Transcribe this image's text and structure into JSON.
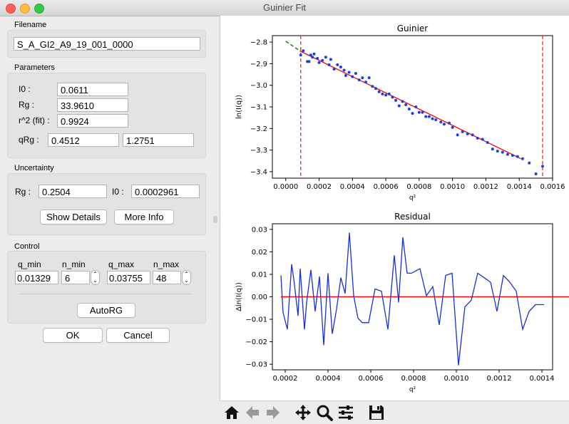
{
  "window": {
    "title": "Guinier Fit"
  },
  "filename": {
    "section": "Filename",
    "value": "S_A_GI2_A9_19_001_0000"
  },
  "parameters": {
    "section": "Parameters",
    "i0_label": "I0 :",
    "i0": "0.0611",
    "rg_label": "Rg :",
    "rg": "33.9610",
    "r2_label": "r^2 (fit) :",
    "r2": "0.9924",
    "qrg_label": "qRg :",
    "qrg_min": "0.4512",
    "qrg_max": "1.2751"
  },
  "uncertainty": {
    "section": "Uncertainty",
    "rg_label": "Rg :",
    "rg": "0.2504",
    "i0_label": "I0 :",
    "i0": "0.0002961",
    "show_details": "Show Details",
    "more_info": "More Info"
  },
  "control": {
    "section": "Control",
    "q_min_label": "q_min",
    "q_min": "0.01329",
    "n_min_label": "n_min",
    "n_min": "6",
    "q_max_label": "q_max",
    "q_max": "0.03755",
    "n_max_label": "n_max",
    "n_max": "48",
    "autorg": "AutoRG"
  },
  "dialog": {
    "ok": "OK",
    "cancel": "Cancel"
  },
  "toolbar_icons": [
    "home-icon",
    "back-arrow-icon",
    "forward-arrow-icon",
    "pan-icon",
    "zoom-icon",
    "configure-subplots-icon",
    "save-icon"
  ],
  "colors": {
    "points": "#1f3fdb",
    "fit": "#ff0000",
    "extrapolation": "#1a7a1a",
    "residual": "#1a2fd6",
    "limits": "#e03030"
  },
  "chart_data": [
    {
      "type": "scatter",
      "title": "Guinier",
      "xlabel": "q²",
      "ylabel": "ln(I(q))",
      "xlim": [
        -8e-05,
        0.0016
      ],
      "ylim": [
        -3.43,
        -2.77
      ],
      "xticks": [
        0.0,
        0.0002,
        0.0004,
        0.0006,
        0.0008,
        0.001,
        0.0012,
        0.0014,
        0.0016
      ],
      "xtick_labels": [
        "0.0000",
        "0.0002",
        "0.0004",
        "0.0006",
        "0.0008",
        "0.0010",
        "0.0012",
        "0.0014",
        "0.0016"
      ],
      "yticks": [
        -2.8,
        -2.9,
        -3.0,
        -3.1,
        -3.2,
        -3.3,
        -3.4
      ],
      "ytick_labels": [
        "−2.8",
        "−2.9",
        "−3.0",
        "−3.1",
        "−3.2",
        "−3.3",
        "−3.4"
      ],
      "grid": false,
      "points": [
        [
          9e-05,
          -2.86
        ],
        [
          0.000105,
          -2.84
        ],
        [
          0.00013,
          -2.89
        ],
        [
          0.00014,
          -2.89
        ],
        [
          0.00015,
          -2.86
        ],
        [
          0.00016,
          -2.87
        ],
        [
          0.00017,
          -2.855
        ],
        [
          0.00019,
          -2.875
        ],
        [
          0.0002,
          -2.895
        ],
        [
          0.00022,
          -2.885
        ],
        [
          0.00024,
          -2.87
        ],
        [
          0.00026,
          -2.905
        ],
        [
          0.00027,
          -2.88
        ],
        [
          0.00029,
          -2.925
        ],
        [
          0.00031,
          -2.905
        ],
        [
          0.00033,
          -2.915
        ],
        [
          0.00035,
          -2.93
        ],
        [
          0.00036,
          -2.955
        ],
        [
          0.00038,
          -2.94
        ],
        [
          0.0004,
          -2.96
        ],
        [
          0.00042,
          -2.945
        ],
        [
          0.00044,
          -2.975
        ],
        [
          0.00046,
          -2.965
        ],
        [
          0.00048,
          -2.985
        ],
        [
          0.0005,
          -2.965
        ],
        [
          0.00052,
          -3.005
        ],
        [
          0.00054,
          -3.015
        ],
        [
          0.00056,
          -3.03
        ],
        [
          0.00058,
          -3.04
        ],
        [
          0.0006,
          -3.045
        ],
        [
          0.00062,
          -3.04
        ],
        [
          0.00064,
          -3.055
        ],
        [
          0.00066,
          -3.07
        ],
        [
          0.00068,
          -3.095
        ],
        [
          0.0007,
          -3.075
        ],
        [
          0.00072,
          -3.09
        ],
        [
          0.00074,
          -3.11
        ],
        [
          0.00076,
          -3.13
        ],
        [
          0.00078,
          -3.1
        ],
        [
          0.0008,
          -3.125
        ],
        [
          0.00082,
          -3.125
        ],
        [
          0.00084,
          -3.145
        ],
        [
          0.00086,
          -3.145
        ],
        [
          0.00088,
          -3.155
        ],
        [
          0.0009,
          -3.16
        ],
        [
          0.00093,
          -3.17
        ],
        [
          0.00095,
          -3.18
        ],
        [
          0.00098,
          -3.175
        ],
        [
          0.001,
          -3.195
        ],
        [
          0.00103,
          -3.23
        ],
        [
          0.00106,
          -3.215
        ],
        [
          0.00109,
          -3.225
        ],
        [
          0.00112,
          -3.23
        ],
        [
          0.00115,
          -3.245
        ],
        [
          0.00118,
          -3.25
        ],
        [
          0.00121,
          -3.265
        ],
        [
          0.00124,
          -3.295
        ],
        [
          0.00127,
          -3.305
        ],
        [
          0.0013,
          -3.31
        ],
        [
          0.00133,
          -3.32
        ],
        [
          0.00136,
          -3.325
        ],
        [
          0.00139,
          -3.33
        ],
        [
          0.00142,
          -3.34
        ],
        [
          0.00146,
          -3.36
        ],
        [
          0.0015,
          -3.41
        ],
        [
          0.00154,
          -3.375
        ]
      ],
      "fit_line": [
        [
          9e-05,
          -2.843
        ],
        [
          0.00141,
          -3.34
        ]
      ],
      "extrapolation_line": [
        [
          0.0,
          -2.796
        ],
        [
          9e-05,
          -2.843
        ]
      ],
      "limits": [
        9e-05,
        0.00154
      ]
    },
    {
      "type": "line",
      "title": "Residual",
      "xlabel": "q²",
      "ylabel": "Δln(I(q))",
      "xlim": [
        0.00014,
        0.00145
      ],
      "ylim": [
        -0.0325,
        0.0325
      ],
      "xticks": [
        0.0002,
        0.0004,
        0.0006,
        0.0008,
        0.001,
        0.0012,
        0.0014
      ],
      "xtick_labels": [
        "0.0002",
        "0.0004",
        "0.0006",
        "0.0008",
        "0.0010",
        "0.0012",
        "0.0014"
      ],
      "yticks": [
        0.03,
        0.02,
        0.01,
        0.0,
        -0.01,
        -0.02,
        -0.03
      ],
      "ytick_labels": [
        "0.03",
        "0.02",
        "0.01",
        "0.00",
        "−0.01",
        "−0.02",
        "−0.03"
      ],
      "grid": false,
      "x": [
        0.00018,
        0.00019,
        0.00021,
        0.00023,
        0.00024,
        0.00026,
        0.00027,
        0.00029,
        0.0003,
        0.00032,
        0.00034,
        0.00036,
        0.00038,
        0.0004,
        0.00042,
        0.00044,
        0.00046,
        0.00048,
        0.0005,
        0.00052,
        0.00054,
        0.00056,
        0.00059,
        0.00062,
        0.00065,
        0.00068,
        0.00071,
        0.00073,
        0.00075,
        0.00077,
        0.00079,
        0.00081,
        0.00083,
        0.00086,
        0.00089,
        0.00092,
        0.00095,
        0.00098,
        0.00101,
        0.00104,
        0.00107,
        0.0011,
        0.00113,
        0.00116,
        0.00119,
        0.00122,
        0.00125,
        0.00128,
        0.00131,
        0.00134,
        0.00137,
        0.00141
      ],
      "y": [
        0.0095,
        -0.007,
        -0.0145,
        0.0145,
        0.008,
        -0.0085,
        0.0125,
        -0.0145,
        -0.0025,
        0.012,
        -0.0065,
        0.009,
        -0.0215,
        0.0105,
        -0.0165,
        -0.0055,
        0.0085,
        0.0015,
        0.0285,
        0.0005,
        -0.0095,
        -0.0115,
        -0.0115,
        0.0035,
        0.0025,
        -0.0145,
        0.0185,
        -0.0025,
        0.0265,
        0.0105,
        0.0105,
        0.0115,
        0.0125,
        0.0005,
        0.0045,
        -0.0125,
        0.0095,
        0.0105,
        -0.0305,
        -0.0045,
        -0.0015,
        0.0105,
        0.0085,
        0.0065,
        -0.0065,
        0.0095,
        0.0065,
        0.0025,
        -0.0145,
        -0.0065,
        -0.0035,
        -0.0035
      ],
      "zero_line": [
        [
          0.00018,
          0.0
        ],
        [
          0.00154,
          0.0
        ]
      ]
    }
  ]
}
